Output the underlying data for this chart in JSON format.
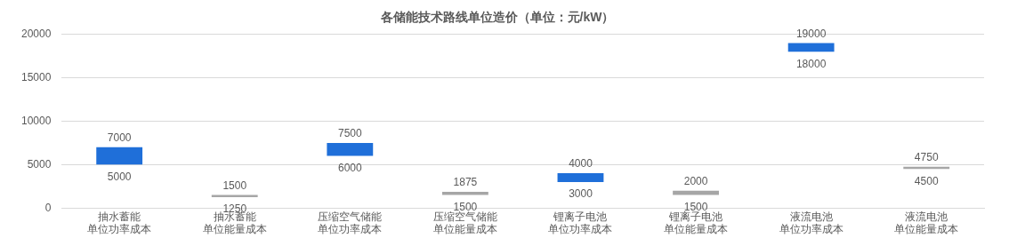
{
  "chart_data": {
    "type": "bar",
    "title": "各储能技术路线单位造价（单位：元/kW）",
    "categories": [
      "抽水蓄能单位功率成本",
      "抽水蓄能单位能量成本",
      "压缩空气储能单位功率成本",
      "压缩空气储能单位能量成本",
      "锂离子电池单位功率成本",
      "锂离子电池单位能量成本",
      "液流电池单位功率成本",
      "液流电池单位能量成本"
    ],
    "base": [
      5000,
      1250,
      6000,
      1500,
      3000,
      1500,
      18000,
      4500
    ],
    "values": [
      2000,
      250,
      1500,
      375,
      1000,
      500,
      1000,
      250
    ],
    "colors": [
      "#1f6fd9",
      "#a6a6a6",
      "#1f6fd9",
      "#a6a6a6",
      "#1f6fd9",
      "#a6a6a6",
      "#1f6fd9",
      "#a6a6a6"
    ],
    "ylim": [
      0,
      20000
    ],
    "yticks": [
      0,
      5000,
      10000,
      15000,
      20000
    ],
    "grid": "y",
    "legend": false,
    "annotations": [
      {
        "text": "7000",
        "x": "抽水蓄能单位功率成本",
        "y": 7000
      },
      {
        "text": "5000",
        "x": "抽水蓄能单位功率成本",
        "y": 5000
      },
      {
        "text": "1500",
        "x": "抽水蓄能单位能量成本",
        "y": 1500
      },
      {
        "text": "1250",
        "x": "抽水蓄能单位能量成本",
        "y": 1250
      },
      {
        "text": "7500",
        "x": "压缩空气储能单位功率成本",
        "y": 7500
      },
      {
        "text": "6000",
        "x": "压缩空气储能单位功率成本",
        "y": 6000
      },
      {
        "text": "1875",
        "x": "压缩空气储能单位能量成本",
        "y": 1875
      },
      {
        "text": "1500",
        "x": "压缩空气储能单位能量成本",
        "y": 1500
      },
      {
        "text": "4000",
        "x": "锂离子电池单位功率成本",
        "y": 4000
      },
      {
        "text": "3000",
        "x": "锂离子电池单位功率成本",
        "y": 3000
      },
      {
        "text": "2000",
        "x": "锂离子电池单位能量成本",
        "y": 2000
      },
      {
        "text": "1500",
        "x": "锂离子电池单位能量成本",
        "y": 1500
      },
      {
        "text": "19000",
        "x": "液流电池单位功率成本",
        "y": 19000
      },
      {
        "text": "18000",
        "x": "液流电池单位功率成本",
        "y": 18000
      },
      {
        "text": "4750",
        "x": "液流电池单位能量成本",
        "y": 4750
      },
      {
        "text": "4500",
        "x": "液流电池单位能量成本",
        "y": 4500
      }
    ]
  }
}
